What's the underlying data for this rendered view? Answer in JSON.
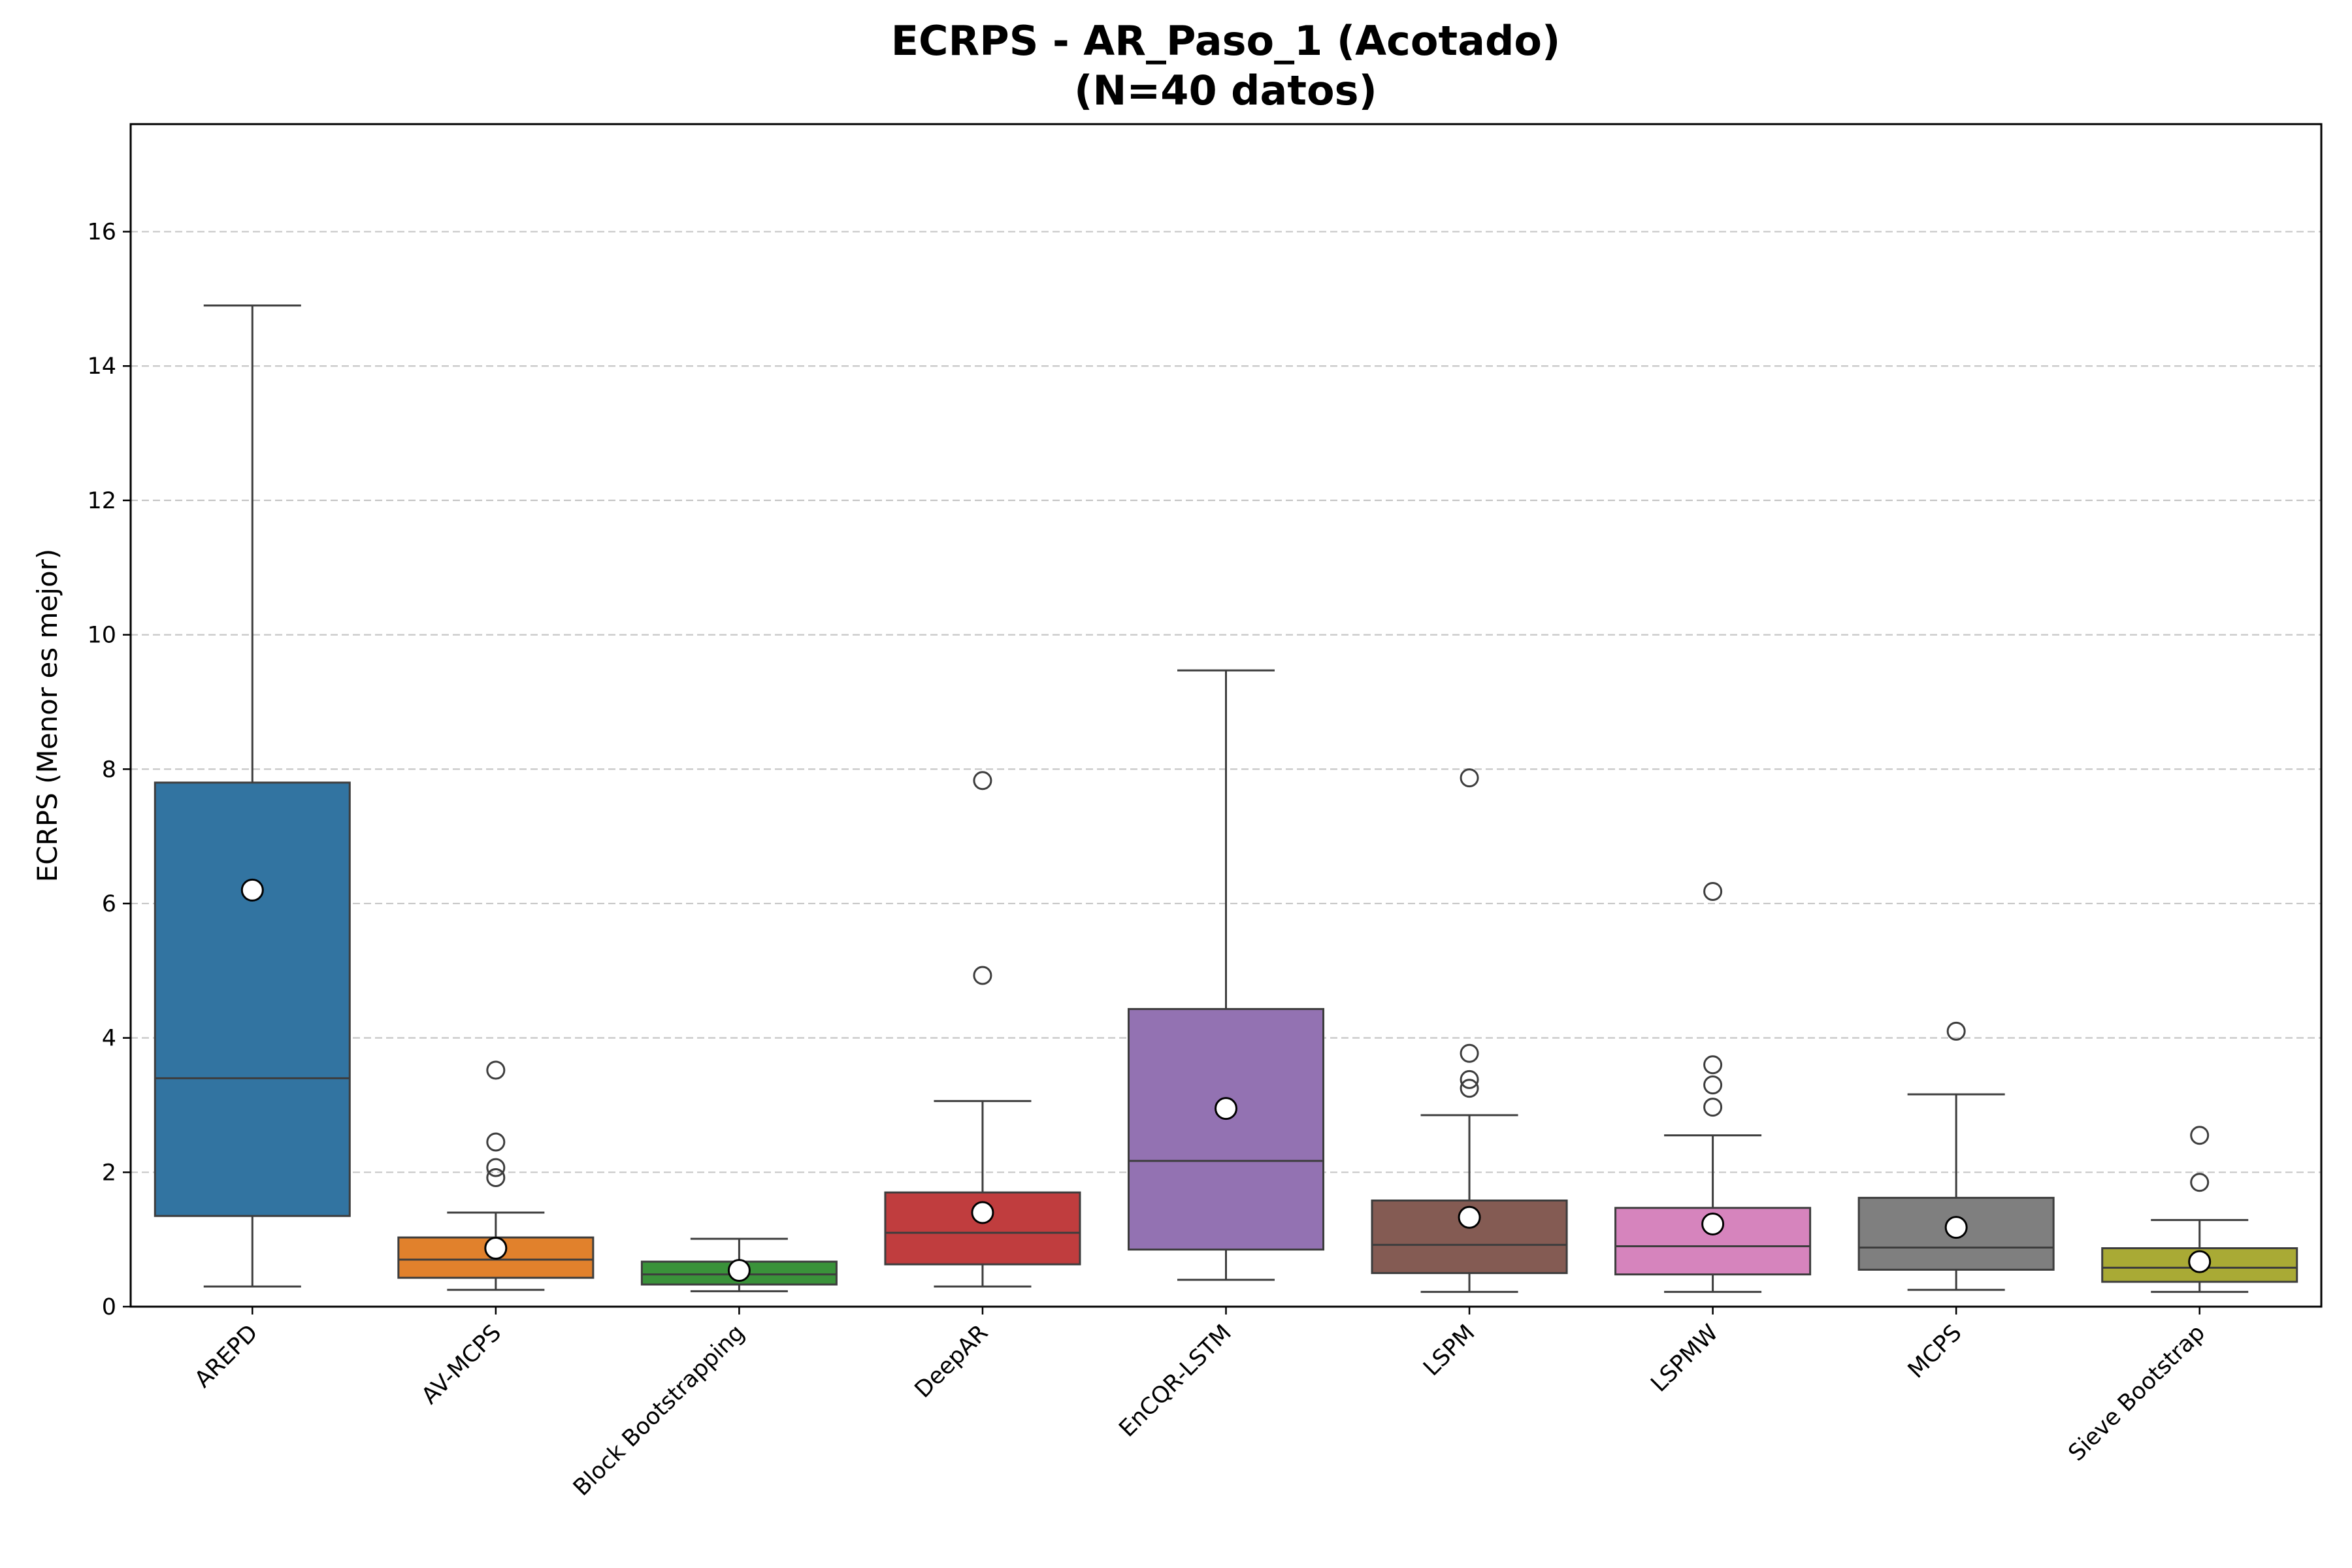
{
  "chart_data": {
    "type": "box",
    "title": "ECRPS - AR_Paso_1 (Acotado)",
    "subtitle": "(N=40 datos)",
    "xlabel": "",
    "ylabel": "ECRPS (Menor es mejor)",
    "ylim": [
      0,
      17.6
    ],
    "yticks": [
      0,
      2,
      4,
      6,
      8,
      10,
      12,
      14,
      16
    ],
    "grid": "y-dashed",
    "categories": [
      "AREPD",
      "AV-MCPS",
      "Block Bootstrapping",
      "DeepAR",
      "EnCQR-LSTM",
      "LSPM",
      "LSPMW",
      "MCPS",
      "Sieve Bootstrap"
    ],
    "boxes": [
      {
        "name": "AREPD",
        "color": "#3274a1",
        "whisker_low": 0.3,
        "q1": 1.35,
        "median": 3.4,
        "q3": 7.8,
        "whisker_high": 14.9,
        "mean": 6.2,
        "outliers": []
      },
      {
        "name": "AV-MCPS",
        "color": "#e1812c",
        "whisker_low": 0.25,
        "q1": 0.43,
        "median": 0.7,
        "q3": 1.03,
        "whisker_high": 1.4,
        "mean": 0.87,
        "outliers": [
          3.52,
          2.45,
          2.07,
          1.92
        ]
      },
      {
        "name": "Block Bootstrapping",
        "color": "#3a923a",
        "whisker_low": 0.23,
        "q1": 0.33,
        "median": 0.48,
        "q3": 0.67,
        "whisker_high": 1.01,
        "mean": 0.54,
        "outliers": []
      },
      {
        "name": "DeepAR",
        "color": "#c03d3e",
        "whisker_low": 0.3,
        "q1": 0.63,
        "median": 1.1,
        "q3": 1.7,
        "whisker_high": 3.06,
        "mean": 1.4,
        "outliers": [
          7.83,
          4.93
        ]
      },
      {
        "name": "EnCQR-LSTM",
        "color": "#9372b2",
        "whisker_low": 0.4,
        "q1": 0.85,
        "median": 2.17,
        "q3": 4.43,
        "whisker_high": 9.47,
        "mean": 2.95,
        "outliers": []
      },
      {
        "name": "LSPM",
        "color": "#845b53",
        "whisker_low": 0.22,
        "q1": 0.5,
        "median": 0.92,
        "q3": 1.58,
        "whisker_high": 2.85,
        "mean": 1.33,
        "outliers": [
          7.87,
          3.77,
          3.38,
          3.25
        ]
      },
      {
        "name": "LSPMW",
        "color": "#d684bd",
        "whisker_low": 0.22,
        "q1": 0.48,
        "median": 0.9,
        "q3": 1.47,
        "whisker_high": 2.55,
        "mean": 1.23,
        "outliers": [
          6.18,
          3.6,
          3.3,
          2.97
        ]
      },
      {
        "name": "MCPS",
        "color": "#7f7f7f",
        "whisker_low": 0.25,
        "q1": 0.55,
        "median": 0.88,
        "q3": 1.62,
        "whisker_high": 3.16,
        "mean": 1.18,
        "outliers": [
          4.1
        ]
      },
      {
        "name": "Sieve Bootstrap",
        "color": "#a9aa35",
        "whisker_low": 0.22,
        "q1": 0.37,
        "median": 0.58,
        "q3": 0.87,
        "whisker_high": 1.29,
        "mean": 0.67,
        "outliers": [
          2.55,
          1.85
        ]
      }
    ]
  }
}
